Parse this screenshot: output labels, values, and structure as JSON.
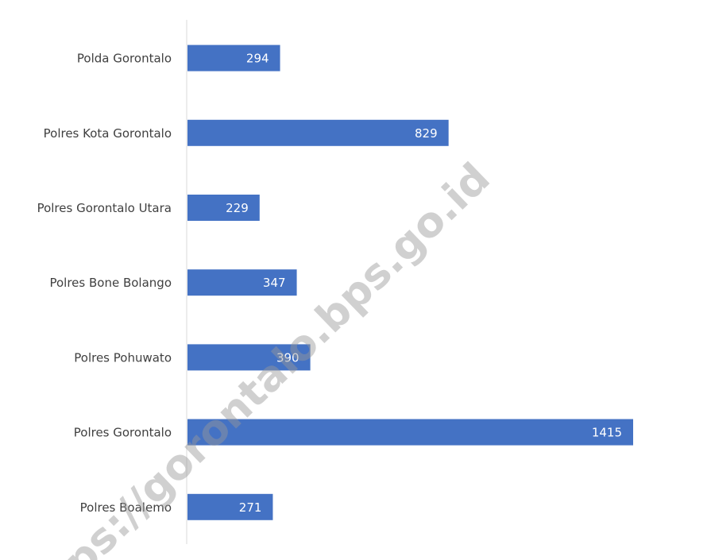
{
  "chart_data": {
    "type": "bar",
    "orientation": "horizontal",
    "categories": [
      "Polda Gorontalo",
      "Polres Kota Gorontalo",
      "Polres Gorontalo Utara",
      "Polres Bone Bolango",
      "Polres Pohuwato",
      "Polres Gorontalo",
      "Polres Boalemo"
    ],
    "values": [
      294,
      829,
      229,
      347,
      390,
      1415,
      271
    ],
    "color": "#4472c4",
    "watermark": "ps://gorontalo.bps.go.id"
  }
}
